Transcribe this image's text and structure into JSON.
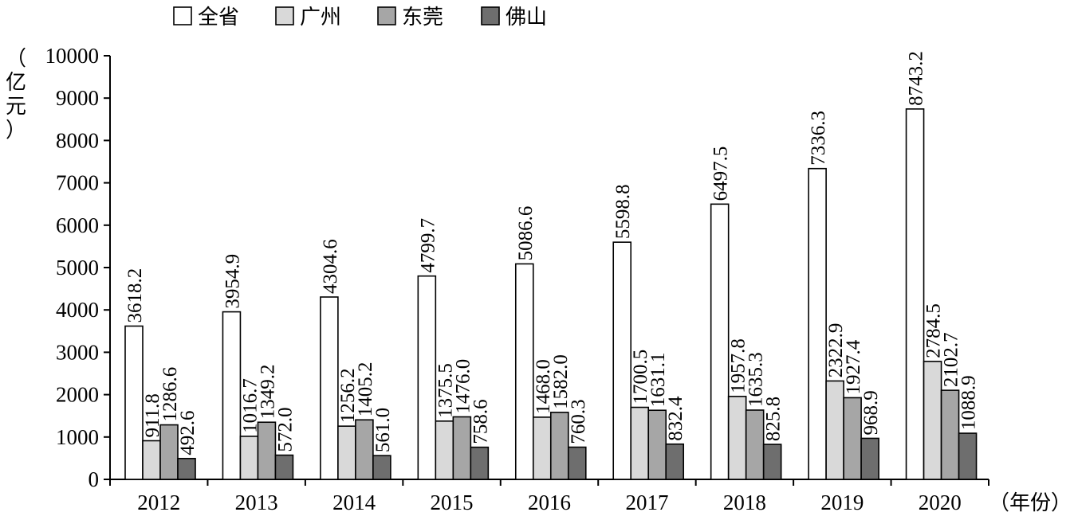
{
  "chart_data": {
    "type": "bar",
    "categories": [
      "2012",
      "2013",
      "2014",
      "2015",
      "2016",
      "2017",
      "2018",
      "2019",
      "2020"
    ],
    "series": [
      {
        "name": "全省",
        "color": "#ffffff",
        "values": [
          3618.2,
          3954.9,
          4304.6,
          4799.7,
          5086.6,
          5598.8,
          6497.5,
          7336.3,
          8743.2
        ],
        "labels": [
          "3618.2",
          "3954.9",
          "4304.6",
          "4799.7",
          "5086.6",
          "5598.8",
          "6497.5",
          "7336.3",
          "8743.2"
        ]
      },
      {
        "name": "广州",
        "color": "#d9d9d9",
        "values": [
          911.8,
          1016.7,
          1256.2,
          1375.5,
          1468.0,
          1700.5,
          1957.8,
          2322.9,
          2784.5
        ],
        "labels": [
          "911.8",
          "1016.7",
          "1256.2",
          "1375.5",
          "1468.0",
          "1700.5",
          "1957.8",
          "2322.9",
          "2784.5"
        ]
      },
      {
        "name": "东莞",
        "color": "#a6a6a6",
        "values": [
          1286.6,
          1349.2,
          1405.2,
          1476.0,
          1582.0,
          1631.1,
          1635.3,
          1927.4,
          2102.7
        ],
        "labels": [
          "1286.6",
          "1349.2",
          "1405.2",
          "1476.0",
          "1582.0",
          "1631.1",
          "1635.3",
          "1927.4",
          "2102.7"
        ]
      },
      {
        "name": "佛山",
        "color": "#6e6e6e",
        "values": [
          492.6,
          572.0,
          561.0,
          758.6,
          760.3,
          832.4,
          825.8,
          968.9,
          1088.9
        ],
        "labels": [
          "492.6",
          "572.0",
          "561.0",
          "758.6",
          "760.3",
          "832.4",
          "825.8",
          "968.9",
          "1088.9"
        ]
      }
    ],
    "ylim": [
      0,
      10000
    ],
    "yticks": [
      "0",
      "1000",
      "2000",
      "3000",
      "4000",
      "5000",
      "6000",
      "7000",
      "8000",
      "9000",
      "10000"
    ],
    "ylabel": "（亿元）",
    "xlabel": "（年份）",
    "legend_position": "top",
    "grid": false
  }
}
